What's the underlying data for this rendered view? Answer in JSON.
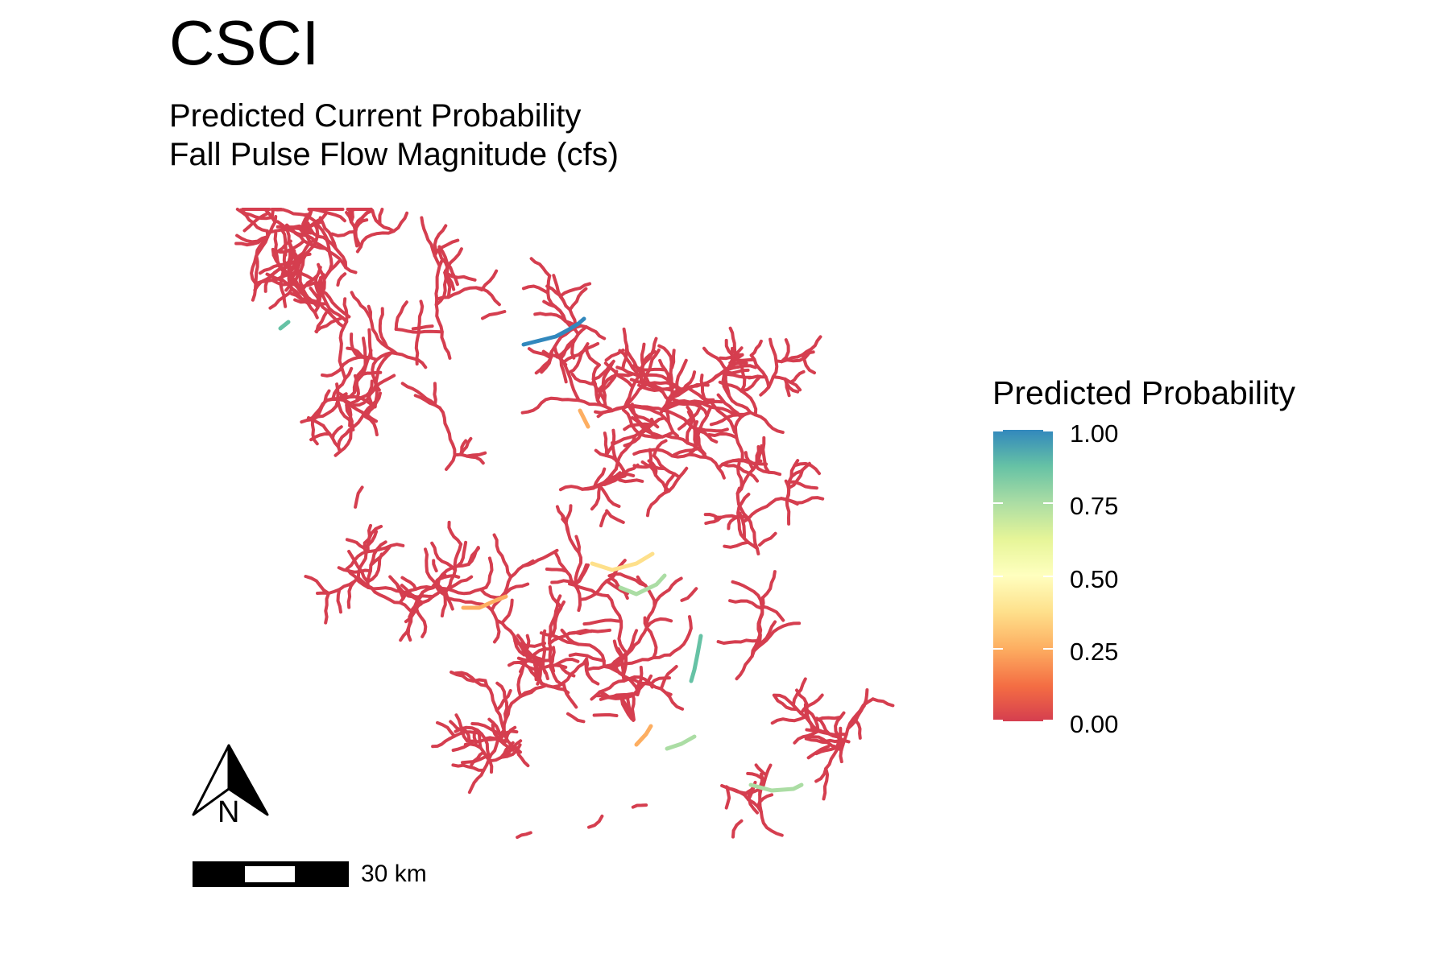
{
  "title": "CSCI",
  "subtitle_line1": "Predicted Current Probability",
  "subtitle_line2": "Fall Pulse Flow Magnitude (cfs)",
  "legend": {
    "title": "Predicted Probability",
    "labels": [
      "1.00",
      "0.75",
      "0.50",
      "0.25",
      "0.00"
    ],
    "colors": {
      "0.00": "#d53e4f",
      "0.25": "#fdae61",
      "0.50": "#ffffbf",
      "0.75": "#abdda4",
      "1.00": "#3288bd"
    }
  },
  "scale_bar": {
    "label": "30 km"
  },
  "north_arrow": {
    "letter": "N",
    "icon": "north-arrow-icon"
  },
  "map": {
    "predominant_value_color": "#d53e4f"
  }
}
